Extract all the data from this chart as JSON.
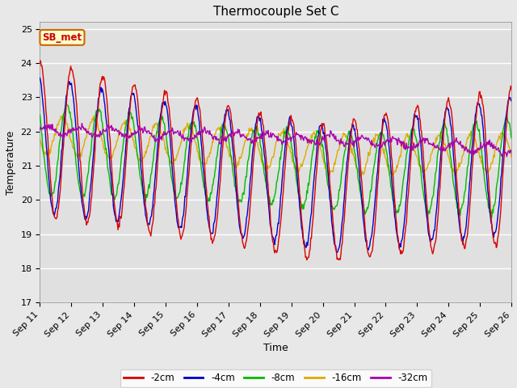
{
  "title": "Thermocouple Set C",
  "xlabel": "Time",
  "ylabel": "Temperature",
  "ylim": [
    17.0,
    25.2
  ],
  "yticks": [
    17.0,
    18.0,
    19.0,
    20.0,
    21.0,
    22.0,
    23.0,
    24.0,
    25.0
  ],
  "n_days": 15,
  "x_tick_labels": [
    "Sep 11",
    "Sep 12",
    "Sep 13",
    "Sep 14",
    "Sep 15",
    "Sep 16",
    "Sep 17",
    "Sep 18",
    "Sep 19",
    "Sep 20",
    "Sep 21",
    "Sep 22",
    "Sep 23",
    "Sep 24",
    "Sep 25",
    "Sep 26"
  ],
  "annotation_text": "SB_met",
  "annotation_color": "#cc0000",
  "annotation_bg": "#ffffcc",
  "annotation_border": "#cc6600",
  "series_colors": {
    "-2cm": "#dd0000",
    "-4cm": "#0000cc",
    "-8cm": "#00bb00",
    "-16cm": "#ddaa00",
    "-32cm": "#aa00aa"
  },
  "legend_labels": [
    "-2cm",
    "-4cm",
    "-8cm",
    "-16cm",
    "-32cm"
  ],
  "background_color": "#e0e0e0",
  "grid_color": "#ffffff",
  "fig_facecolor": "#e8e8e8",
  "title_fontsize": 11,
  "label_fontsize": 9,
  "tick_fontsize": 8
}
